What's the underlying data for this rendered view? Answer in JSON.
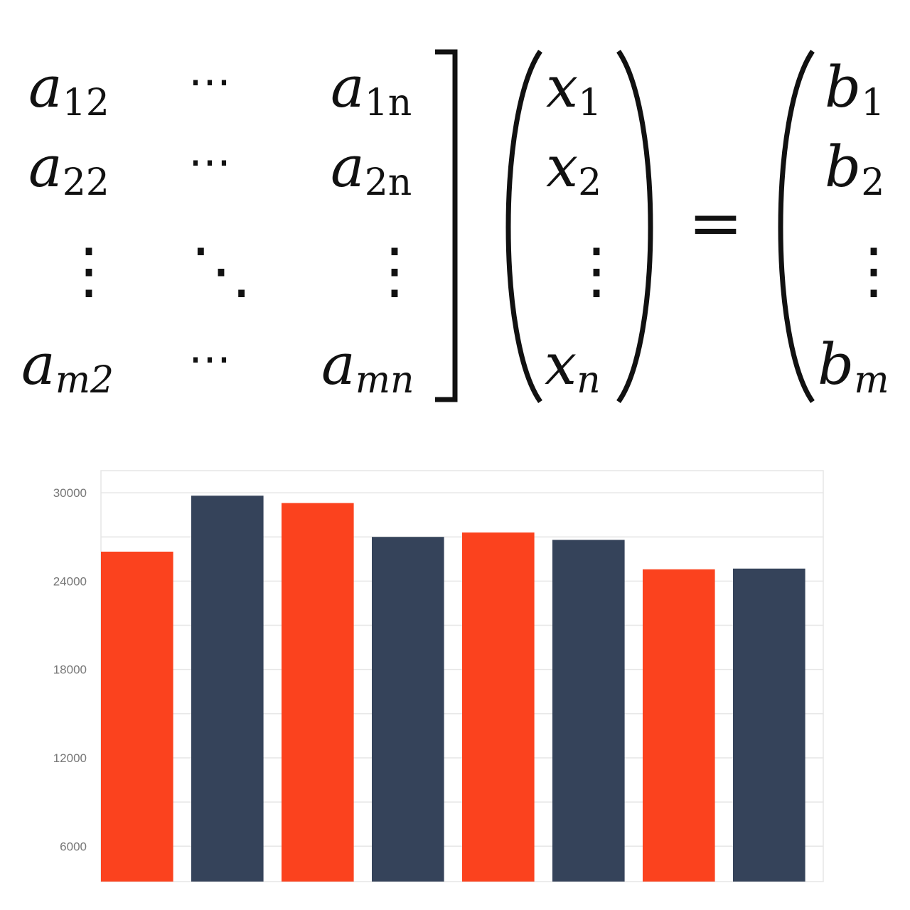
{
  "equation": {
    "matrix_cells": [
      [
        "a",
        "12",
        "⋯",
        "a",
        "1n"
      ],
      [
        "a",
        "22",
        "⋯",
        "a",
        "2n"
      ],
      [
        "⋮",
        "",
        "⋱",
        "⋮",
        ""
      ],
      [
        "a",
        "m2",
        "⋯",
        "a",
        "mn"
      ]
    ],
    "x_vector": [
      "x",
      "1",
      "x",
      "2",
      "⋮",
      "x",
      "n"
    ],
    "equals": "=",
    "b_vector": [
      "b",
      "1",
      "b",
      "2",
      "⋮",
      "b",
      "m"
    ]
  },
  "colors": {
    "orange": "#fb421e",
    "navy": "#35435a",
    "grid": "#e6e6e6",
    "tick_text": "#777777"
  },
  "chart_data": {
    "type": "bar",
    "ylim": [
      3600,
      31500
    ],
    "yticks": [
      6000,
      12000,
      18000,
      24000,
      30000
    ],
    "ytick_labels": [
      "6000",
      "12000",
      "18000",
      "24000",
      "30000"
    ],
    "minor_grid": [
      9000,
      15000,
      21000,
      27000
    ],
    "grid": true,
    "values": [
      26000,
      29800,
      29300,
      27000,
      27300,
      26800,
      24800,
      24850
    ],
    "bar_colors": [
      "#fb421e",
      "#35435a",
      "#fb421e",
      "#35435a",
      "#fb421e",
      "#35435a",
      "#fb421e",
      "#35435a"
    ],
    "xlabel": "",
    "ylabel": "",
    "title": ""
  }
}
